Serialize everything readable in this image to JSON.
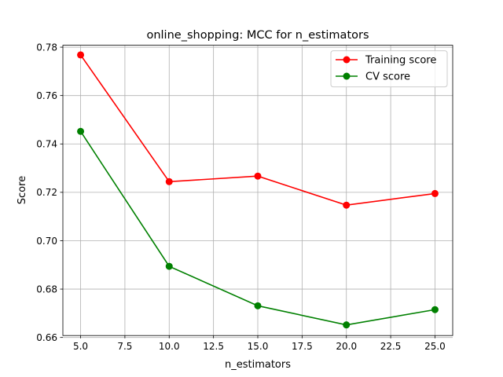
{
  "chart_data": {
    "type": "line",
    "title": "online_shopping: MCC for n_estimators",
    "xlabel": "n_estimators",
    "ylabel": "Score",
    "x": [
      5,
      10,
      15,
      20,
      25
    ],
    "xticks": [
      "5.0",
      "7.5",
      "10.0",
      "12.5",
      "15.0",
      "17.5",
      "20.0",
      "22.5",
      "25.0"
    ],
    "yticks": [
      "0.66",
      "0.68",
      "0.70",
      "0.72",
      "0.74",
      "0.76",
      "0.78"
    ],
    "xlim": [
      4.0,
      26.0
    ],
    "ylim": [
      0.6608,
      0.7808
    ],
    "grid": true,
    "legend_position": "top-right",
    "series": [
      {
        "name": "Training score",
        "color": "#ff0000",
        "values": [
          0.7768,
          0.7244,
          0.7267,
          0.7147,
          0.7195
        ]
      },
      {
        "name": "CV score",
        "color": "#008000",
        "values": [
          0.7452,
          0.6894,
          0.6731,
          0.6652,
          0.6715
        ]
      }
    ]
  }
}
